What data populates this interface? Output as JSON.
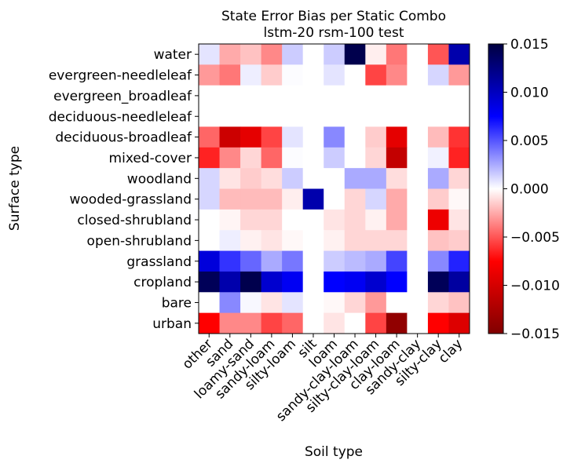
{
  "chart_data": {
    "type": "heatmap",
    "title": "State Error Bias per Static Combo",
    "subtitle": "lstm-20 rsm-100 test",
    "xlabel": "Soil type",
    "ylabel": "Surface type",
    "x_categories": [
      "other",
      "sand",
      "loamy-sand",
      "sandy-loam",
      "silty-loam",
      "silt",
      "loam",
      "sandy-clay-loam",
      "silty-clay-loam",
      "clay-loam",
      "sandy-clay",
      "silty-clay",
      "clay"
    ],
    "y_categories": [
      "water",
      "evergreen-needleleaf",
      "evergreen_broadleaf",
      "deciduous-needleleaf",
      "deciduous-broadleaf",
      "mixed-cover",
      "woodland",
      "wooded-grassland",
      "closed-shrubland",
      "open-shrubland",
      "grassland",
      "cropland",
      "bare",
      "urban"
    ],
    "values": [
      [
        0.0008,
        -0.0025,
        -0.0018,
        -0.0035,
        0.0015,
        0.0,
        0.0015,
        0.015,
        -0.0005,
        -0.004,
        0.0,
        -0.005,
        0.011
      ],
      [
        -0.003,
        -0.004,
        0.0005,
        -0.0015,
        0.0001,
        0.0,
        0.0008,
        0.0,
        -0.0055,
        -0.0035,
        0.0,
        0.0012,
        -0.003
      ],
      [
        0,
        0,
        0,
        0,
        0,
        0,
        0,
        0,
        0,
        0,
        0,
        0,
        0
      ],
      [
        0,
        0,
        0,
        0,
        0,
        0,
        0,
        0,
        0,
        0,
        0,
        0,
        0
      ],
      [
        -0.0045,
        -0.0105,
        -0.009,
        -0.0055,
        0.0008,
        0.0,
        0.0035,
        0.0,
        -0.0015,
        -0.009,
        0.0,
        -0.002,
        -0.006
      ],
      [
        -0.0065,
        -0.0035,
        -0.0012,
        -0.0045,
        0.0001,
        0.0,
        0.0015,
        0.0,
        -0.0012,
        -0.011,
        0.0,
        0.0004,
        -0.0065
      ],
      [
        0.0012,
        -0.0008,
        -0.0015,
        -0.001,
        0.0015,
        0.0,
        0.0,
        0.0025,
        0.0025,
        -0.001,
        0.0,
        0.0025,
        -0.0012
      ],
      [
        0.0012,
        -0.002,
        -0.002,
        -0.002,
        -0.0005,
        0.011,
        0.0,
        -0.0012,
        0.0012,
        -0.0025,
        0.0,
        -0.0015,
        -0.0002
      ],
      [
        0.0,
        -0.0003,
        -0.0012,
        -0.0012,
        0.0,
        0.0,
        -0.0008,
        -0.0012,
        -0.0004,
        -0.0025,
        0.0,
        -0.0085,
        -0.0008
      ],
      [
        0.0,
        0.0005,
        -0.0004,
        -0.0008,
        -0.0002,
        0.0,
        -0.0004,
        -0.0012,
        -0.0012,
        -0.0012,
        0.0,
        -0.0018,
        -0.0015
      ],
      [
        0.009,
        0.006,
        0.0045,
        0.0025,
        0.004,
        0.0,
        0.0015,
        0.002,
        0.0025,
        0.0055,
        0.0,
        0.0035,
        0.0065
      ],
      [
        0.0145,
        0.011,
        0.015,
        0.0095,
        0.008,
        0.0,
        0.0075,
        0.008,
        0.0095,
        0.0075,
        0.0,
        0.0145,
        0.0115
      ],
      [
        0.0,
        0.0035,
        0.0002,
        -0.0008,
        0.0008,
        0.0,
        -0.0002,
        -0.0012,
        -0.003,
        0.0,
        0.0,
        -0.0012,
        -0.0018
      ],
      [
        -0.0075,
        -0.0035,
        -0.0035,
        -0.0055,
        -0.0045,
        0.0,
        -0.0008,
        0.0,
        -0.0055,
        -0.014,
        0.0,
        -0.0075,
        -0.0095
      ]
    ],
    "colorbar": {
      "cmap": "seismic_r",
      "vmin": -0.015,
      "vmax": 0.015,
      "ticks": [
        "0.015",
        "0.010",
        "0.005",
        "0.000",
        "−0.005",
        "−0.010",
        "−0.015"
      ]
    }
  }
}
